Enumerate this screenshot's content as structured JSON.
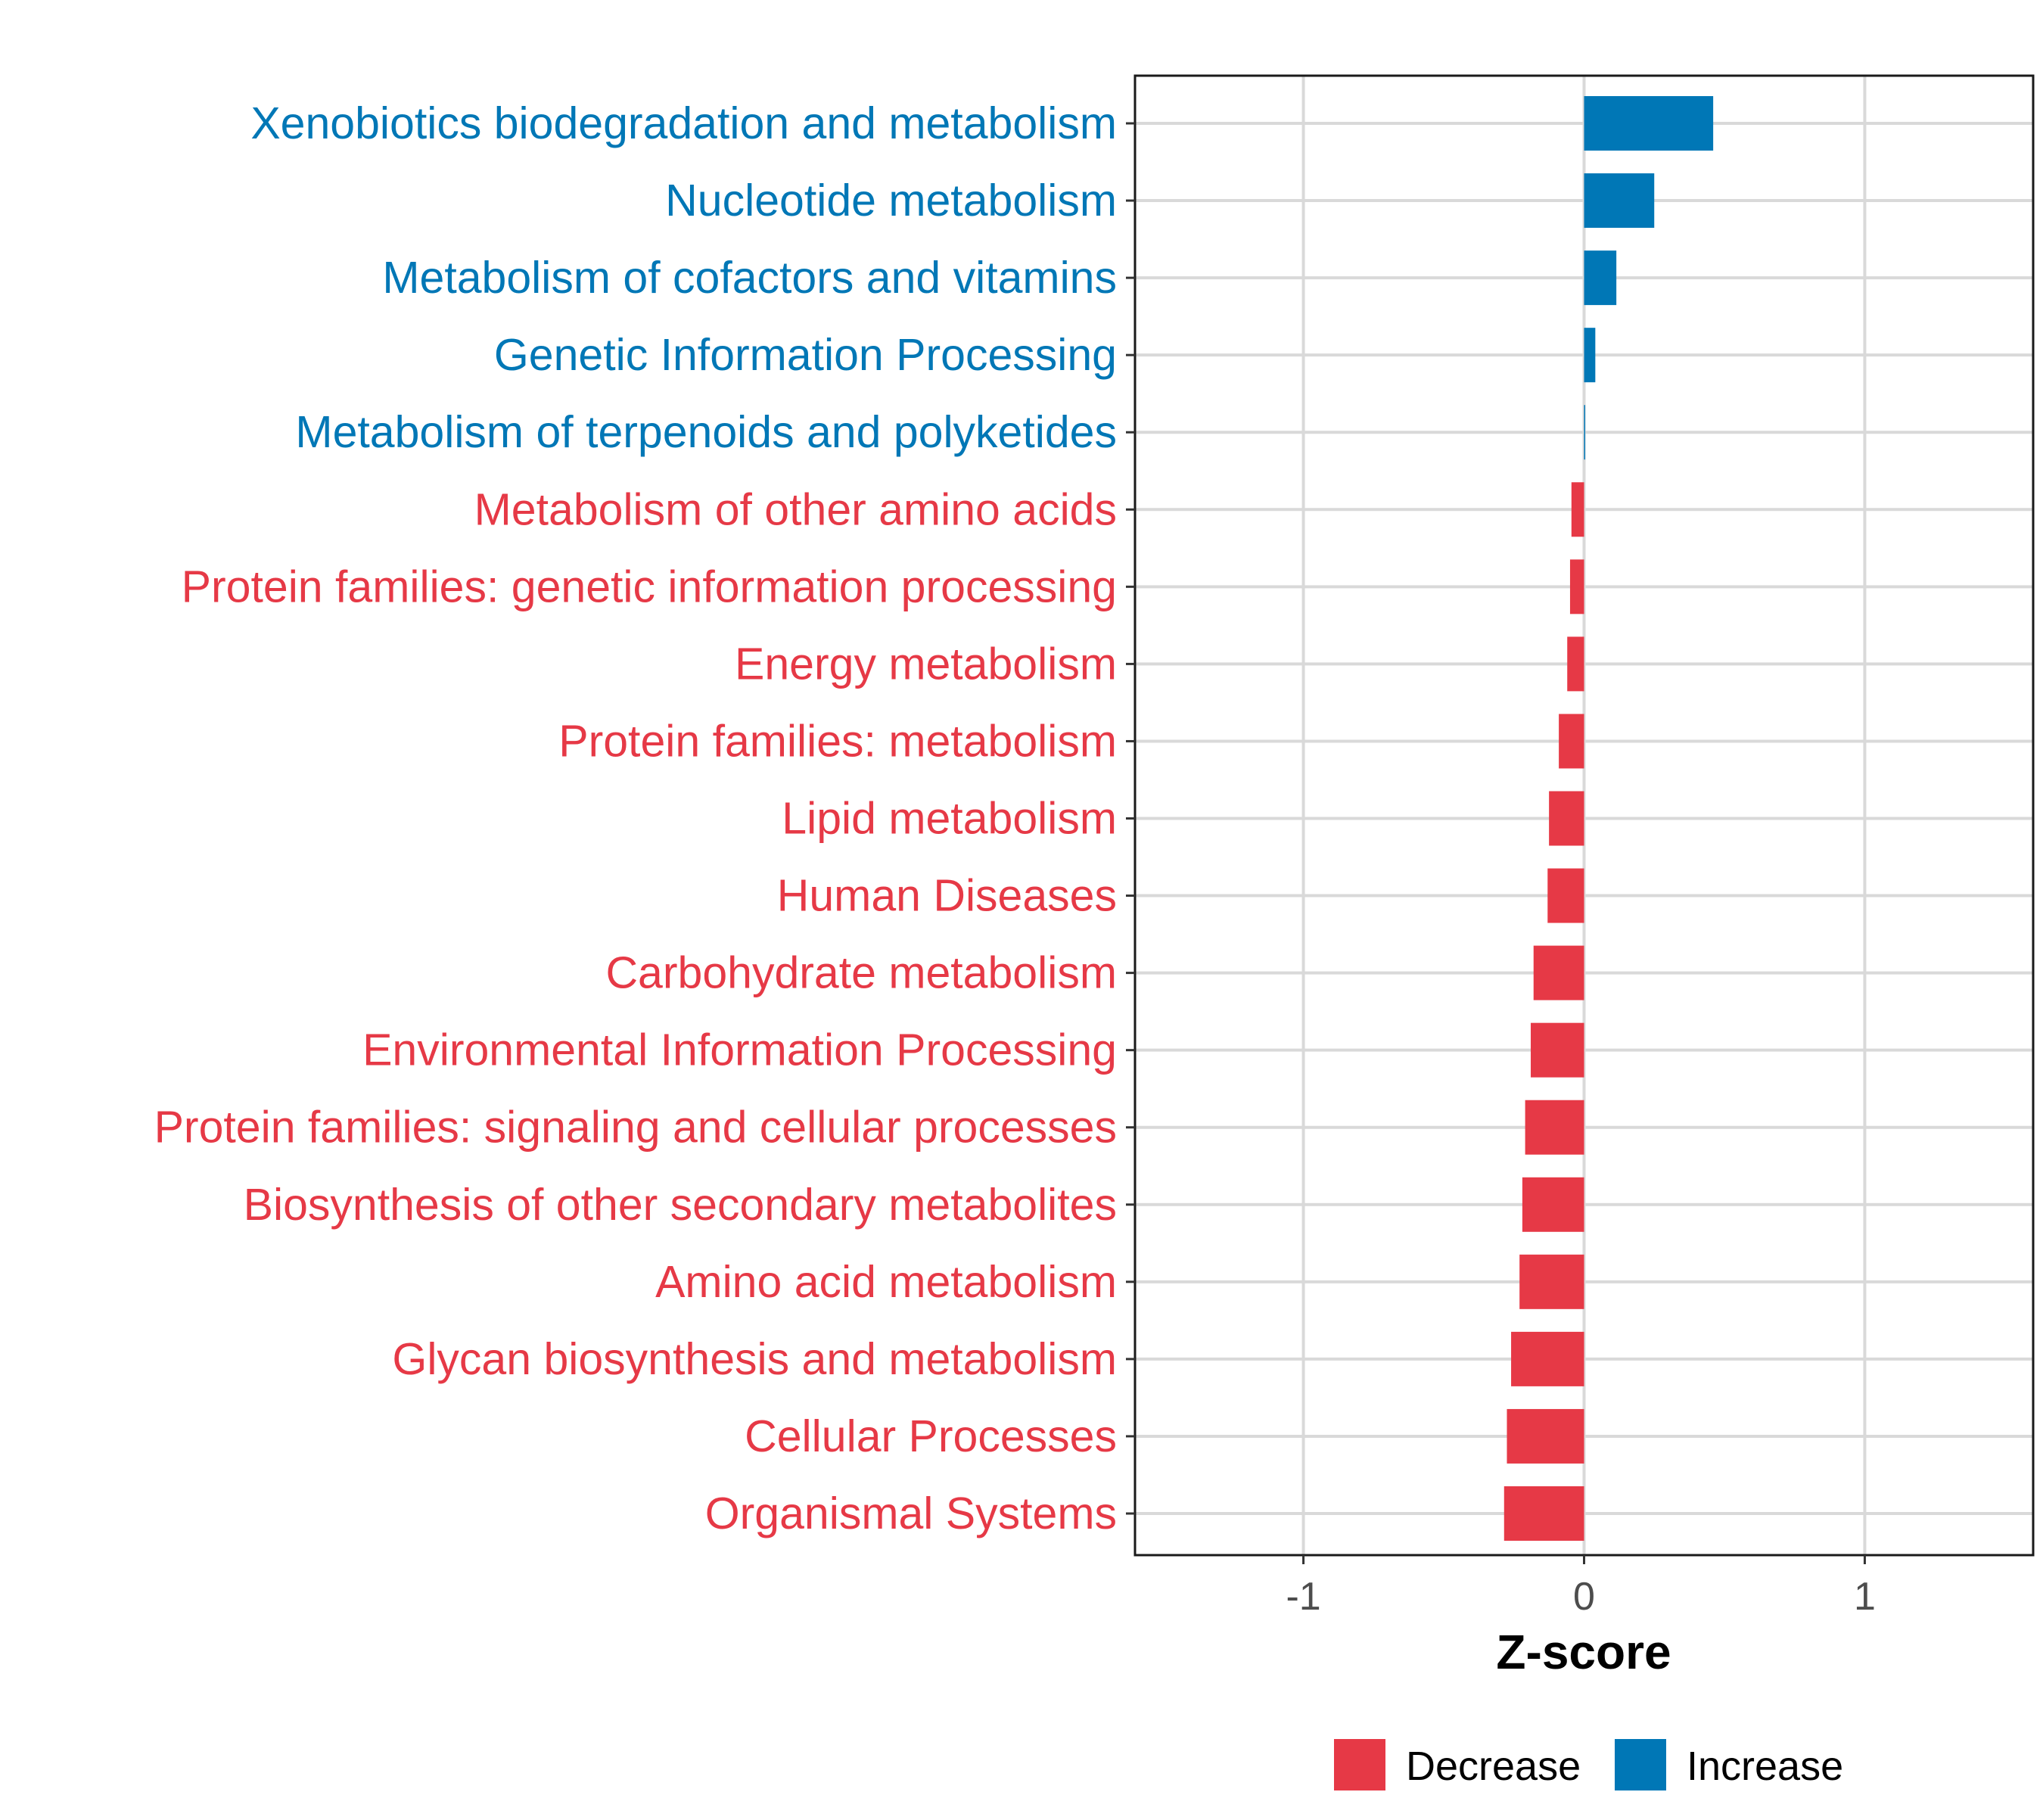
{
  "chart_data": {
    "type": "bar",
    "orientation": "horizontal",
    "title": "",
    "xlabel": "Z-score",
    "ylabel": "",
    "xlim": [
      -1.6,
      1.6
    ],
    "xticks": [
      -1,
      0,
      1
    ],
    "xtick_labels": [
      "-1",
      "0",
      "1"
    ],
    "grid": true,
    "legend_position": "bottom",
    "colors": {
      "Decrease": "#e63946",
      "Increase": "#0077b6"
    },
    "legend": [
      {
        "label": "Decrease",
        "color": "#e63946"
      },
      {
        "label": "Increase",
        "color": "#0077b6"
      }
    ],
    "categories": [
      "Xenobiotics biodegradation and metabolism",
      "Nucleotide metabolism",
      "Metabolism of cofactors and vitamins",
      "Genetic Information Processing",
      "Metabolism of terpenoids and polyketides",
      "Metabolism of other amino acids",
      "Protein families: genetic information processing",
      "Energy metabolism",
      "Protein families: metabolism",
      "Lipid metabolism",
      "Human Diseases",
      "Carbohydrate metabolism",
      "Environmental Information Processing",
      "Protein families: signaling and cellular processes",
      "Biosynthesis of other secondary metabolites",
      "Amino acid metabolism",
      "Glycan biosynthesis and metabolism",
      "Cellular Processes",
      "Organismal Systems"
    ],
    "values": [
      0.46,
      0.25,
      0.115,
      0.04,
      0.003,
      -0.045,
      -0.05,
      -0.06,
      -0.09,
      -0.125,
      -0.13,
      -0.18,
      -0.19,
      -0.21,
      -0.22,
      -0.23,
      -0.26,
      -0.275,
      -0.285
    ],
    "groups": [
      "Increase",
      "Increase",
      "Increase",
      "Increase",
      "Increase",
      "Decrease",
      "Decrease",
      "Decrease",
      "Decrease",
      "Decrease",
      "Decrease",
      "Decrease",
      "Decrease",
      "Decrease",
      "Decrease",
      "Decrease",
      "Decrease",
      "Decrease",
      "Decrease"
    ]
  }
}
